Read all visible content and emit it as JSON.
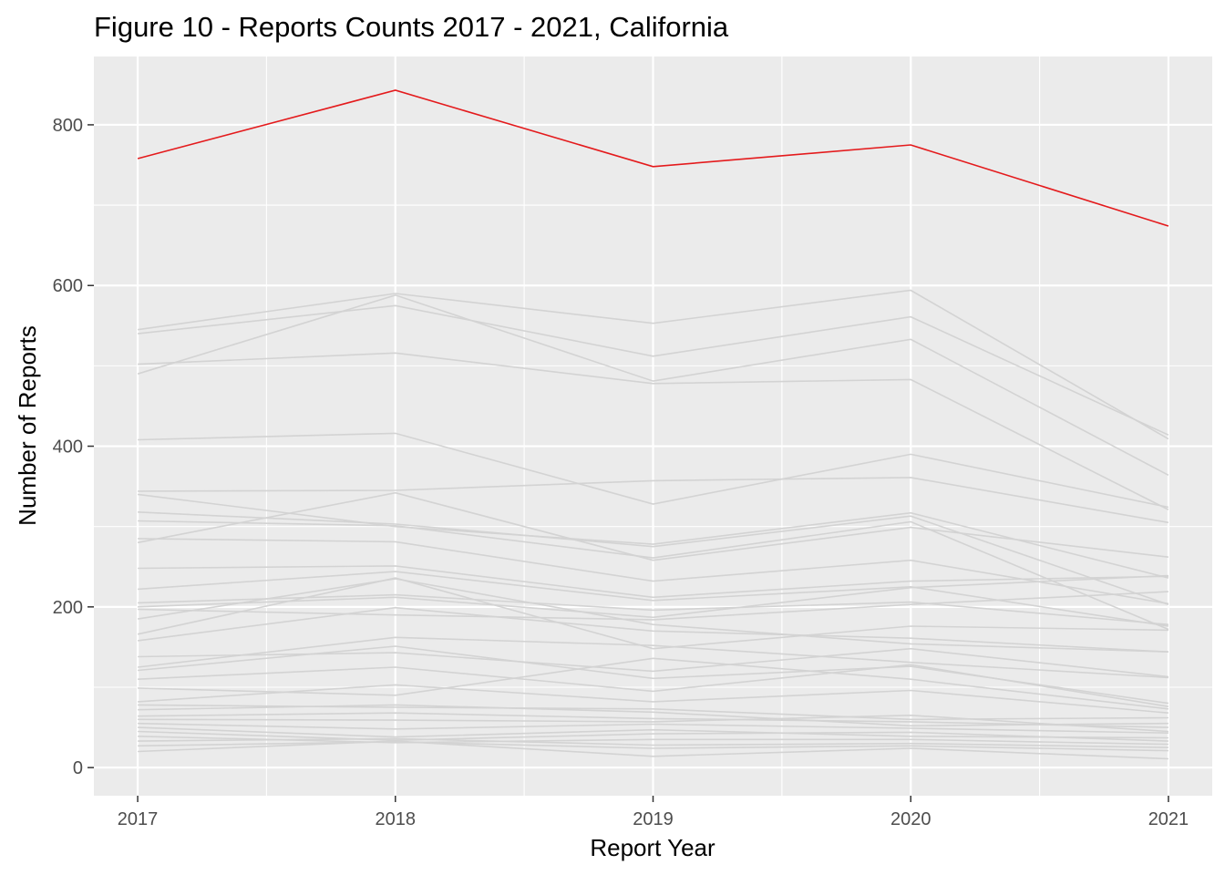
{
  "chart_data": {
    "type": "line",
    "title": "Figure 10 - Reports Counts 2017 - 2021, California",
    "xlabel": "Report Year",
    "ylabel": "Number of Reports",
    "x": [
      2017,
      2018,
      2019,
      2020,
      2021
    ],
    "x_tick_labels": [
      "2017",
      "2018",
      "2019",
      "2020",
      "2021"
    ],
    "xlim": [
      2016.83,
      2021.17
    ],
    "ylim": [
      -35,
      885
    ],
    "y_ticks": [
      0,
      200,
      400,
      600,
      800
    ],
    "y_tick_labels": [
      "0",
      "200",
      "400",
      "600",
      "800"
    ],
    "grid": true,
    "legend": "none",
    "colors": {
      "panel": "#EBEBEB",
      "grid": "#FFFFFF",
      "highlight": "#E41A1C",
      "background_series": "#D3D3D3"
    },
    "highlight_series": {
      "values": [
        758,
        843,
        748,
        775,
        674
      ]
    },
    "background_series": [
      {
        "values": [
          545,
          590,
          553,
          594,
          409
        ]
      },
      {
        "values": [
          540,
          575,
          512,
          561,
          414
        ]
      },
      {
        "values": [
          490,
          588,
          481,
          533,
          364
        ]
      },
      {
        "values": [
          502,
          516,
          478,
          483,
          321
        ]
      },
      {
        "values": [
          408,
          416,
          328,
          390,
          324
        ]
      },
      {
        "values": [
          344,
          345,
          357,
          361,
          305
        ]
      },
      {
        "values": [
          340,
          300,
          278,
          317,
          236
        ]
      },
      {
        "values": [
          318,
          303,
          275,
          313,
          203
        ]
      },
      {
        "values": [
          307,
          301,
          261,
          306,
          172
        ]
      },
      {
        "values": [
          280,
          342,
          258,
          299,
          262
        ]
      },
      {
        "values": [
          285,
          281,
          232,
          258,
          204
        ]
      },
      {
        "values": [
          248,
          251,
          212,
          232,
          238
        ]
      },
      {
        "values": [
          222,
          244,
          208,
          225,
          176
        ]
      },
      {
        "values": [
          205,
          215,
          196,
          206,
          178
        ]
      },
      {
        "values": [
          200,
          212,
          187,
          224,
          239
        ]
      },
      {
        "values": [
          197,
          190,
          184,
          203,
          219
        ]
      },
      {
        "values": [
          185,
          235,
          178,
          154,
          144
        ]
      },
      {
        "values": [
          166,
          236,
          148,
          176,
          171
        ]
      },
      {
        "values": [
          158,
          199,
          170,
          161,
          144
        ]
      },
      {
        "values": [
          125,
          162,
          152,
          131,
          112
        ]
      },
      {
        "values": [
          138,
          143,
          120,
          148,
          113
        ]
      },
      {
        "values": [
          121,
          151,
          111,
          126,
          80
        ]
      },
      {
        "values": [
          110,
          125,
          95,
          128,
          76
        ]
      },
      {
        "values": [
          99,
          90,
          136,
          110,
          73
        ]
      },
      {
        "values": [
          82,
          103,
          82,
          96,
          68
        ]
      },
      {
        "values": [
          78,
          75,
          73,
          60,
          62
        ]
      },
      {
        "values": [
          72,
          78,
          69,
          52,
          55
        ]
      },
      {
        "values": [
          64,
          68,
          61,
          57,
          50
        ]
      },
      {
        "values": [
          60,
          59,
          57,
          65,
          45
        ]
      },
      {
        "values": [
          55,
          48,
          54,
          49,
          43
        ]
      },
      {
        "values": [
          50,
          38,
          47,
          39,
          37
        ]
      },
      {
        "values": [
          45,
          34,
          42,
          44,
          33
        ]
      },
      {
        "values": [
          39,
          31,
          35,
          35,
          29
        ]
      },
      {
        "values": [
          33,
          36,
          28,
          30,
          25
        ]
      },
      {
        "values": [
          27,
          32,
          24,
          27,
          21
        ]
      },
      {
        "values": [
          20,
          33,
          14,
          24,
          11
        ]
      }
    ]
  }
}
